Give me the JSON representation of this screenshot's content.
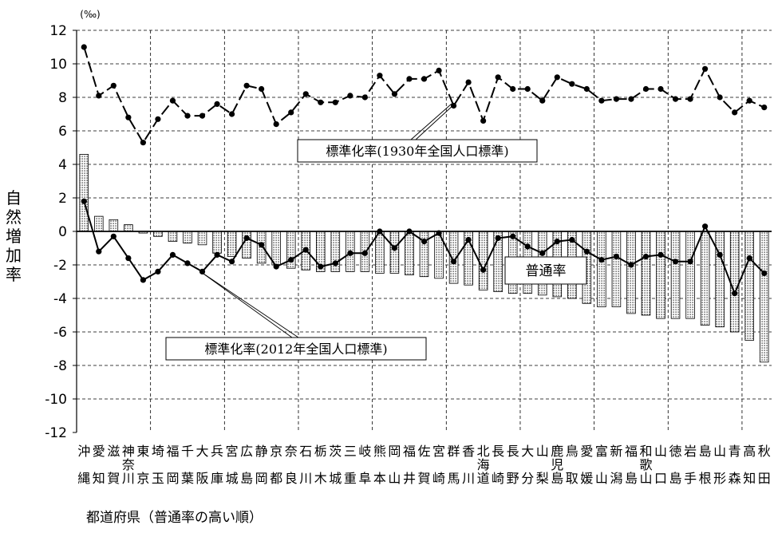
{
  "chart_data": {
    "type": "bar",
    "unit": "(‰)",
    "ylabel": "自然増加率",
    "xlabel": "都道府県（普通率の高い順）",
    "ylim": [
      -12,
      12
    ],
    "yticks": [
      "12",
      "10",
      "8",
      "6",
      "4",
      "2",
      "0",
      "-2",
      "-4",
      "-6",
      "-8",
      "-10",
      "-12"
    ],
    "grid": true,
    "categories": [
      "沖縄",
      "愛知",
      "滋賀",
      "神奈川",
      "東京",
      "埼玉",
      "福岡",
      "千葉",
      "大阪",
      "兵庫",
      "宮城",
      "広島",
      "静岡",
      "京都",
      "奈良",
      "石川",
      "栃木",
      "茨城",
      "三重",
      "岐阜",
      "熊本",
      "岡山",
      "福井",
      "佐賀",
      "宮崎",
      "群馬",
      "香川",
      "北海道",
      "長崎",
      "長野",
      "大分",
      "山梨",
      "鹿児島",
      "鳥取",
      "愛媛",
      "富山",
      "新潟",
      "福島",
      "和歌山",
      "山口",
      "徳島",
      "岩手",
      "島根",
      "山形",
      "青森",
      "高知",
      "秋田"
    ],
    "series": [
      {
        "name": "普通率",
        "kind": "bar",
        "values": [
          4.6,
          0.9,
          0.7,
          0.4,
          -0.1,
          -0.3,
          -0.6,
          -0.7,
          -0.8,
          -1.3,
          -1.5,
          -1.6,
          -1.9,
          -2.0,
          -2.2,
          -2.3,
          -2.4,
          -2.4,
          -2.4,
          -2.4,
          -2.5,
          -2.5,
          -2.6,
          -2.7,
          -2.8,
          -3.1,
          -3.2,
          -3.5,
          -3.6,
          -3.7,
          -3.7,
          -3.8,
          -3.9,
          -4.0,
          -4.3,
          -4.5,
          -4.5,
          -4.9,
          -5.0,
          -5.2,
          -5.2,
          -5.2,
          -5.6,
          -5.7,
          -6.0,
          -6.5,
          -7.8
        ]
      },
      {
        "name": "標準化率（2012年全国人口標準）",
        "kind": "line",
        "values": [
          1.8,
          -1.2,
          -0.3,
          -1.6,
          -2.9,
          -2.4,
          -1.4,
          -1.9,
          -2.4,
          -1.4,
          -1.8,
          -0.4,
          -0.8,
          -2.1,
          -1.7,
          -1.1,
          -2.1,
          -1.9,
          -1.3,
          -1.3,
          0.0,
          -1.0,
          0.0,
          -0.6,
          -0.1,
          -1.8,
          -0.5,
          -2.3,
          -0.4,
          -0.3,
          -0.9,
          -1.3,
          -0.6,
          -0.5,
          -1.2,
          -1.7,
          -1.5,
          -2.0,
          -1.5,
          -1.4,
          -1.8,
          -1.8,
          0.3,
          -1.4,
          -3.7,
          -1.6,
          -2.5
        ]
      },
      {
        "name": "標準化率（1930年全国人口標準）",
        "kind": "line",
        "values": [
          11.0,
          8.1,
          8.7,
          6.8,
          5.3,
          6.7,
          7.8,
          6.9,
          6.9,
          7.6,
          7.0,
          8.7,
          8.5,
          6.4,
          7.1,
          8.2,
          7.7,
          7.7,
          8.1,
          8.0,
          9.3,
          8.2,
          9.1,
          9.1,
          9.6,
          7.5,
          8.9,
          6.6,
          9.2,
          8.5,
          8.5,
          7.8,
          9.2,
          8.8,
          8.5,
          7.8,
          7.9,
          7.9,
          8.5,
          8.5,
          7.9,
          7.9,
          9.7,
          8.0,
          7.1,
          7.8,
          7.4
        ]
      }
    ],
    "annotations": {
      "futsuuritsu": "普通率",
      "std2012": "標準化率(2012年全国人口標準)",
      "std1930": "標準化率(1930年全国人口標準)"
    }
  }
}
